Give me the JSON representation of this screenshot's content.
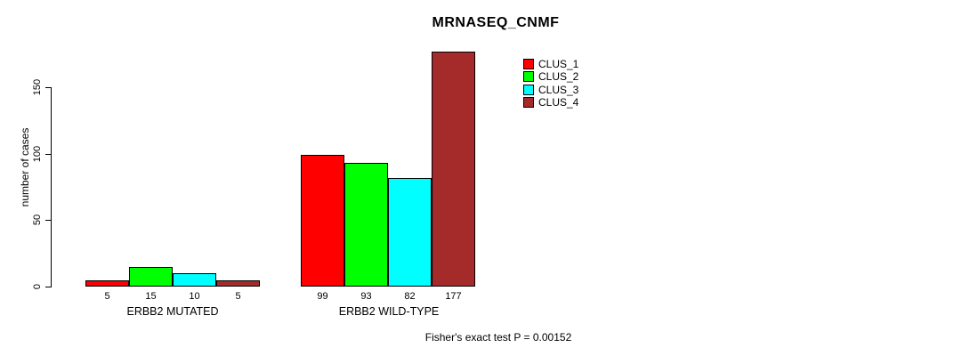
{
  "page": {
    "background": "#ffffff",
    "text_color": "#000000"
  },
  "chart_data": {
    "type": "bar",
    "title": "MRNASEQ_CNMF",
    "ylabel": "number of cases",
    "xlabel": "",
    "categories": [
      "ERBB2 MUTATED",
      "ERBB2 WILD-TYPE"
    ],
    "series": [
      {
        "name": "CLUS_1",
        "color": "#FF0000",
        "values": [
          5,
          99
        ]
      },
      {
        "name": "CLUS_2",
        "color": "#00FF00",
        "values": [
          15,
          93
        ]
      },
      {
        "name": "CLUS_3",
        "color": "#00FFFF",
        "values": [
          10,
          82
        ]
      },
      {
        "name": "CLUS_4",
        "color": "#A52A2A",
        "values": [
          5,
          177
        ]
      }
    ],
    "bar_value_labels": [
      [
        5,
        15,
        10,
        5
      ],
      [
        99,
        93,
        82,
        177
      ]
    ],
    "yticks": [
      0,
      50,
      100,
      150
    ],
    "ylim": [
      0,
      180
    ],
    "grid": false,
    "legend_position": "top-right",
    "annotation": "Fisher's exact test P = 0.00152"
  }
}
